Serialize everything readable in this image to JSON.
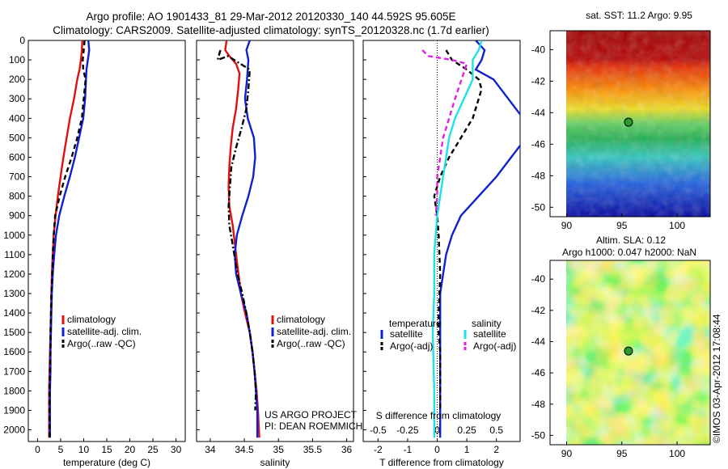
{
  "header": {
    "line1": "Argo profile: AO 1901433_81 29-Mar-2012 20120330_140 44.592S 95.605E",
    "line2": "Climatology: CARS2009. Satellite-adjusted climatology: synTS_20120328.nc (1.7d earlier)"
  },
  "annotations": {
    "project1": "US ARGO PROJECT",
    "project2": "PI: DEAN ROEMMICH",
    "credit": "©IMOS 03-Apr-2012 17:08:44"
  },
  "colors": {
    "red": "#e01010",
    "blue": "#1020d0",
    "black": "#000000",
    "cyan": "#20e0e8",
    "magenta": "#e020e0"
  },
  "chart_data": [
    {
      "id": "temperature",
      "type": "line",
      "xlabel": "temperature (deg C)",
      "ylabel": "",
      "xlim": [
        -2,
        32
      ],
      "ylim": [
        0,
        2060
      ],
      "y_reversed": true,
      "xticks": [
        0,
        5,
        10,
        15,
        20,
        25,
        30
      ],
      "yticks": [
        0,
        100,
        200,
        300,
        400,
        500,
        600,
        700,
        800,
        900,
        1000,
        1100,
        1200,
        1300,
        1400,
        1500,
        1600,
        1700,
        1800,
        1900,
        2000
      ],
      "legend_placement": "bottom-center",
      "series": [
        {
          "name": "climatology",
          "color": "red",
          "dash": "solid",
          "x": [
            9.7,
            9.6,
            9.4,
            9.1,
            8.6,
            7.9,
            7.0,
            6.3,
            5.6,
            5.0,
            4.4,
            3.9,
            3.5,
            3.3,
            3.1,
            3.0,
            2.9,
            2.8,
            2.7,
            2.6,
            2.5,
            2.5
          ],
          "y": [
            0,
            50,
            100,
            150,
            200,
            300,
            400,
            500,
            600,
            700,
            800,
            900,
            1000,
            1100,
            1200,
            1300,
            1400,
            1500,
            1600,
            1700,
            1800,
            2040
          ]
        },
        {
          "name": "satellite-adj. clim.",
          "color": "blue",
          "dash": "solid",
          "x": [
            11.0,
            11.2,
            10.9,
            10.6,
            10.5,
            10.3,
            9.9,
            9.0,
            8.1,
            7.0,
            5.8,
            4.7,
            4.0,
            3.6,
            3.3,
            3.1,
            3.0,
            2.9,
            2.8,
            2.8,
            2.7,
            2.7
          ],
          "y": [
            0,
            50,
            100,
            150,
            200,
            300,
            400,
            500,
            600,
            700,
            800,
            900,
            1000,
            1100,
            1200,
            1300,
            1400,
            1500,
            1600,
            1700,
            1800,
            2040
          ]
        },
        {
          "name": "Argo(..raw -QC)",
          "color": "black",
          "dash": "dash",
          "x": [
            10.2,
            10.0,
            9.8,
            9.9,
            10.4,
            10.0,
            9.6,
            8.6,
            7.4,
            6.0,
            4.8,
            3.8,
            3.5,
            3.3,
            3.2,
            3.0,
            2.9,
            2.8,
            2.8,
            2.7,
            2.6,
            2.6
          ],
          "y": [
            0,
            50,
            100,
            150,
            200,
            300,
            400,
            500,
            600,
            700,
            800,
            900,
            1000,
            1100,
            1200,
            1300,
            1400,
            1500,
            1600,
            1700,
            1800,
            2040
          ]
        }
      ]
    },
    {
      "id": "salinity",
      "type": "line",
      "xlabel": "salinity",
      "ylabel": "",
      "xlim": [
        33.8,
        36.1
      ],
      "ylim": [
        0,
        2060
      ],
      "y_reversed": true,
      "xticks": [
        34,
        34.5,
        35,
        35.5,
        36
      ],
      "xtick_labels": [
        "34",
        "34.5",
        "35",
        "35.5",
        "36"
      ],
      "legend_placement": "bottom-right",
      "series": [
        {
          "name": "climatology",
          "color": "red",
          "dash": "solid",
          "x": [
            34.24,
            34.22,
            34.28,
            34.38,
            34.43,
            34.41,
            34.38,
            34.33,
            34.3,
            34.28,
            34.27,
            34.28,
            34.33,
            34.38,
            34.45,
            34.51,
            34.58,
            34.62,
            34.65,
            34.68,
            34.7,
            34.72
          ],
          "y": [
            0,
            50,
            80,
            120,
            170,
            250,
            350,
            450,
            550,
            650,
            750,
            850,
            950,
            1100,
            1300,
            1400,
            1500,
            1600,
            1700,
            1800,
            1900,
            2040
          ]
        },
        {
          "name": "satellite-adj. clim.",
          "color": "blue",
          "dash": "solid",
          "x": [
            34.58,
            34.53,
            34.56,
            34.54,
            34.51,
            34.55,
            34.64,
            34.66,
            34.63,
            34.56,
            34.47,
            34.39,
            34.36,
            34.38,
            34.45,
            34.53,
            34.58,
            34.62,
            34.65,
            34.67,
            34.69,
            34.69
          ],
          "y": [
            0,
            50,
            100,
            200,
            300,
            400,
            500,
            600,
            700,
            800,
            900,
            1000,
            1100,
            1200,
            1300,
            1400,
            1500,
            1600,
            1700,
            1800,
            1900,
            2040
          ]
        },
        {
          "name": "Argo(..raw -QC)",
          "color": "black",
          "dash": "dashdot",
          "x": [
            34.15,
            34.11,
            34.26,
            34.58,
            34.56,
            34.53,
            34.46,
            34.38,
            34.31,
            34.29,
            34.27,
            34.28,
            34.33,
            34.4,
            34.47,
            34.53,
            34.58,
            34.62,
            34.65,
            34.67,
            34.66
          ],
          "y": [
            50,
            100,
            80,
            150,
            250,
            350,
            450,
            550,
            650,
            750,
            850,
            950,
            1050,
            1200,
            1300,
            1400,
            1500,
            1600,
            1700,
            1800,
            1900
          ]
        }
      ]
    },
    {
      "id": "difference",
      "type": "line",
      "xlabel": "T difference from climatology",
      "xlabel_top": "S difference from climatology",
      "ylabel": "",
      "xlim": [
        -2.5,
        2.8
      ],
      "ylim": [
        0,
        2060
      ],
      "y_reversed": true,
      "xticks": [
        -2,
        -1,
        0,
        1,
        2
      ],
      "xticks_S": [
        -0.5,
        -0.25,
        0,
        0.25,
        0.5
      ],
      "xtick_S_labels": [
        "-0.5",
        "-0.25",
        "0",
        "0.25",
        "0.5"
      ],
      "legend_titles": [
        "temperature",
        "salinity"
      ],
      "legend_placement": "bottom",
      "series": [
        {
          "name": "satellite",
          "group": "temperature",
          "color": "blue",
          "dash": "solid",
          "x": [
            1.3,
            1.6,
            1.5,
            1.3,
            1.9,
            2.4,
            2.9,
            3.0,
            2.5,
            2.0,
            1.4,
            0.8,
            0.5,
            0.3,
            0.2,
            0.1,
            0.1,
            0.1,
            0.1,
            0.1,
            0.1,
            0.1
          ],
          "y": [
            0,
            50,
            100,
            150,
            200,
            300,
            400,
            500,
            600,
            700,
            800,
            900,
            1000,
            1100,
            1200,
            1300,
            1400,
            1500,
            1600,
            1700,
            1800,
            2040
          ]
        },
        {
          "name": "Argo(-adj)",
          "group": "temperature",
          "color": "black",
          "dash": "dash",
          "x": [
            0.3,
            0.5,
            1.0,
            1.4,
            1.5,
            1.4,
            1.2,
            0.8,
            0.4,
            0.1,
            -0.1,
            0.0,
            0.05,
            0.1,
            0.05,
            0.05,
            0.1,
            0.1,
            0.1,
            0.1
          ],
          "y": [
            50,
            100,
            150,
            200,
            250,
            300,
            400,
            500,
            600,
            700,
            800,
            900,
            1000,
            1200,
            1400,
            1500,
            1600,
            1700,
            1800,
            1900
          ]
        },
        {
          "name": "satellite",
          "group": "salinity",
          "color": "cyan",
          "dash": "solid",
          "x": [
            1.5,
            1.4,
            1.2,
            1.2,
            1.2,
            0.9,
            0.6,
            0.4,
            0.3,
            0.2,
            0.1,
            0.0,
            -0.1,
            -0.1,
            -0.15,
            -0.1,
            -0.1
          ],
          "y": [
            0,
            50,
            100,
            150,
            200,
            300,
            400,
            500,
            600,
            700,
            800,
            900,
            1100,
            1300,
            1500,
            1800,
            2040
          ]
        },
        {
          "name": "Argo(-adj)",
          "group": "salinity",
          "color": "magenta",
          "dash": "dash",
          "x": [
            -0.5,
            -0.3,
            0.5,
            1.0,
            0.6,
            0.4,
            0.2,
            0.1,
            0.0,
            0.0,
            -0.05
          ],
          "y": [
            50,
            80,
            100,
            120,
            300,
            400,
            500,
            600,
            700,
            800,
            900
          ]
        }
      ]
    },
    {
      "id": "sst-map",
      "type": "heatmap",
      "title": "sat. SST: 11.2 Argo: 9.95",
      "xlim": [
        88.5,
        103
      ],
      "ylim": [
        -50.6,
        -38.8
      ],
      "xticks": [
        90,
        95,
        100
      ],
      "yticks": [
        -40,
        -42,
        -44,
        -46,
        -48,
        -50
      ],
      "marker": {
        "lon": 95.6,
        "lat": -44.6
      }
    },
    {
      "id": "sla-map",
      "type": "heatmap",
      "title": "Altim. SLA: 0.12",
      "subtitle": "Argo h1000: 0.047 h2000: NaN",
      "xlim": [
        88.5,
        103
      ],
      "ylim": [
        -50.6,
        -38.8
      ],
      "xticks": [
        90,
        95,
        100
      ],
      "yticks": [
        -40,
        -42,
        -44,
        -46,
        -48,
        -50
      ],
      "marker": {
        "lon": 95.6,
        "lat": -44.6
      }
    }
  ]
}
